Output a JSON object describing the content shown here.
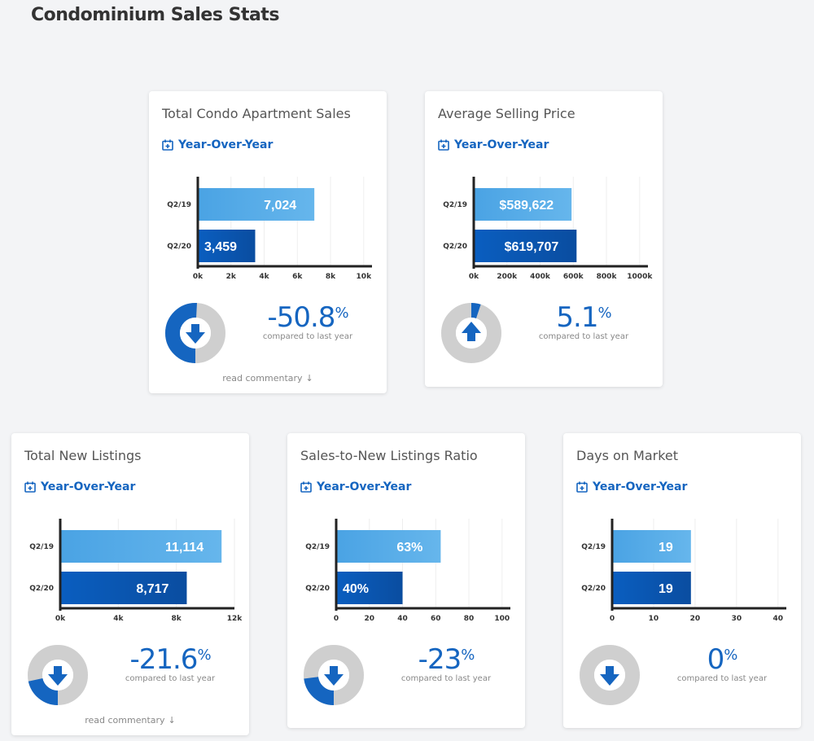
{
  "page_title": "Condominium Sales Stats",
  "yoy_label": "Year-Over-Year",
  "compared_text": "compared to last year",
  "commentary_text": "read commentary",
  "colors": {
    "accent": "#1565c0",
    "bar_light": "#5aaee8",
    "bar_dark": "#0a58b3",
    "donut_bg": "#cfcfcf"
  },
  "cards": [
    {
      "title": "Total Condo Apartment Sales",
      "pct": "-50.8",
      "pct_symbol": "%",
      "direction": "down",
      "share": 0.508,
      "commentary": true,
      "chart_data": {
        "type": "bar",
        "categories": [
          "Q2/19",
          "Q2/20"
        ],
        "values": [
          7024,
          3459
        ],
        "value_labels": [
          "7,024",
          "3,459"
        ],
        "ticks": [
          "0k",
          "2k",
          "4k",
          "6k",
          "8k",
          "10k"
        ],
        "xlim": [
          0,
          10500
        ]
      }
    },
    {
      "title": "Average Selling Price",
      "pct": "5.1",
      "pct_symbol": "%",
      "direction": "up",
      "share": 0.051,
      "commentary": false,
      "chart_data": {
        "type": "bar",
        "categories": [
          "Q2/19",
          "Q2/20"
        ],
        "values": [
          589622,
          619707
        ],
        "value_labels": [
          "$589,622",
          "$619,707"
        ],
        "ticks": [
          "0k",
          "200k",
          "400k",
          "600k",
          "800k",
          "1000k"
        ],
        "xlim": [
          0,
          1050000
        ]
      }
    },
    {
      "title": "Total New Listings",
      "pct": "-21.6",
      "pct_symbol": "%",
      "direction": "down",
      "share": 0.216,
      "commentary": true,
      "chart_data": {
        "type": "bar",
        "categories": [
          "Q2/19",
          "Q2/20"
        ],
        "values": [
          11114,
          8717
        ],
        "value_labels": [
          "11,114",
          "8,717"
        ],
        "ticks": [
          "0k",
          "4k",
          "8k",
          "12k"
        ],
        "xlim": [
          0,
          12000
        ]
      }
    },
    {
      "title": "Sales-to-New Listings Ratio",
      "pct": "-23",
      "pct_symbol": "%",
      "direction": "down",
      "share": 0.23,
      "commentary": false,
      "chart_data": {
        "type": "bar",
        "categories": [
          "Q2/19",
          "Q2/20"
        ],
        "values": [
          63,
          40
        ],
        "value_labels": [
          "63%",
          "40%"
        ],
        "ticks": [
          "0",
          "20",
          "40",
          "60",
          "80",
          "100"
        ],
        "xlim": [
          0,
          105
        ]
      }
    },
    {
      "title": "Days on Market",
      "pct": "0",
      "pct_symbol": "%",
      "direction": "down",
      "share": 0,
      "commentary": false,
      "chart_data": {
        "type": "bar",
        "categories": [
          "Q2/19",
          "Q2/20"
        ],
        "values": [
          19,
          19
        ],
        "value_labels": [
          "19",
          "19"
        ],
        "ticks": [
          "0",
          "10",
          "20",
          "30",
          "40"
        ],
        "xlim": [
          0,
          42
        ]
      }
    }
  ]
}
